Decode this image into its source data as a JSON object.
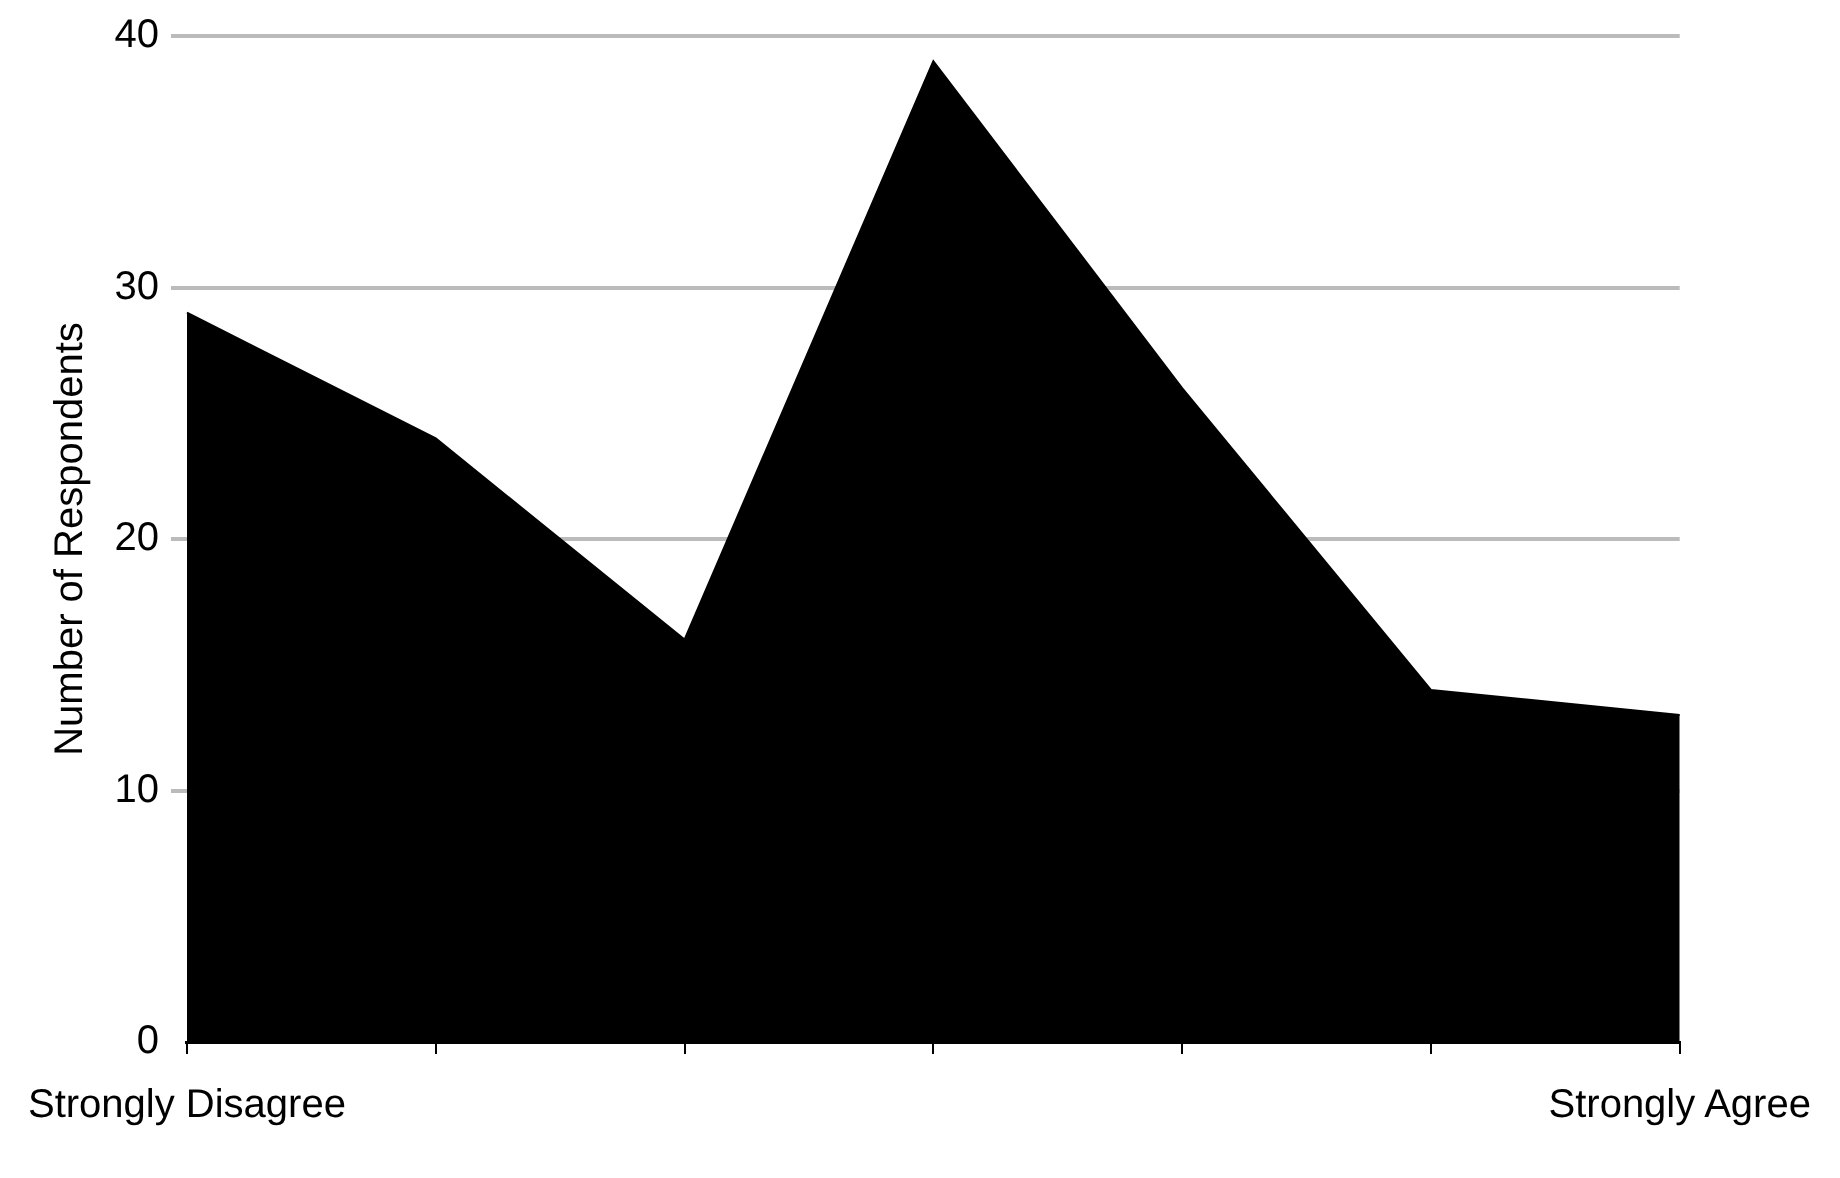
{
  "chart_data": {
    "type": "area",
    "ylabel": "Number of Respondents",
    "categories": [
      "Strongly Disagree",
      null,
      null,
      null,
      null,
      null,
      "Strongly Agree"
    ],
    "values": [
      29,
      24,
      16,
      39,
      26,
      14,
      13
    ],
    "color": "#000000",
    "ylim": [
      0,
      40
    ],
    "yticks": [
      0,
      10,
      20,
      30,
      40
    ],
    "grid": "y",
    "legend": false
  }
}
